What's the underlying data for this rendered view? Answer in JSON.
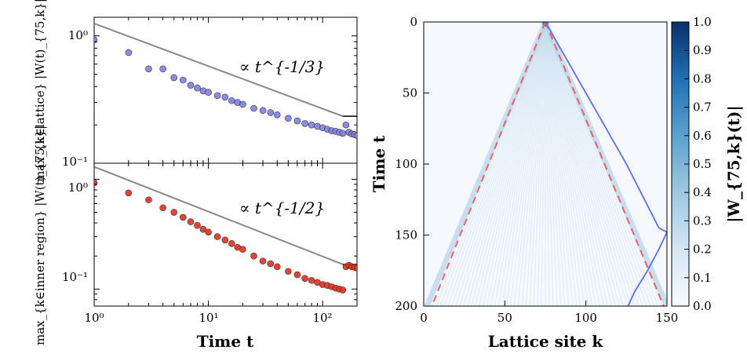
{
  "chart_data": [
    {
      "type": "scatter",
      "panel": "top-left",
      "scale": "log-log",
      "ylabel": "max_{k∈lattice} |W(t)_{75,k}|",
      "xlim": [
        1,
        200
      ],
      "ylim": [
        0.1,
        1.4
      ],
      "yticks": [
        "10⁰",
        "10⁻¹"
      ],
      "annotation": "∝ t^{-1/3}",
      "series": [
        {
          "color": "#8080e0",
          "x": [
            1,
            2,
            3,
            4,
            5,
            6,
            7,
            8,
            9,
            10,
            12,
            14,
            16,
            18,
            20,
            25,
            30,
            35,
            40,
            50,
            60,
            70,
            80,
            90,
            100,
            110,
            120,
            130,
            140,
            150,
            160,
            170,
            180,
            190,
            200
          ],
          "y": [
            0.93,
            0.74,
            0.55,
            0.55,
            0.47,
            0.45,
            0.41,
            0.39,
            0.37,
            0.36,
            0.34,
            0.33,
            0.31,
            0.3,
            0.29,
            0.27,
            0.26,
            0.25,
            0.24,
            0.225,
            0.215,
            0.205,
            0.2,
            0.195,
            0.19,
            0.185,
            0.18,
            0.178,
            0.175,
            0.172,
            0.2,
            0.175,
            0.17,
            0.168,
            0.165
          ]
        }
      ],
      "guide_line": {
        "x": [
          1,
          150
        ],
        "y": [
          1.25,
          0.234
        ],
        "color": "#888888"
      },
      "marker_segment": {
        "x": [
          150,
          200
        ],
        "y": [
          0.234,
          0.234
        ],
        "color": "#000000"
      }
    },
    {
      "type": "scatter",
      "panel": "bottom-left",
      "scale": "log-log",
      "xlabel": "Time t",
      "ylabel": "max_{k∈inner region} |W(t)_{75,k}|",
      "xlim": [
        1,
        200
      ],
      "ylim": [
        0.07,
        1.4
      ],
      "xticks": [
        "10⁰",
        "10¹",
        "10²"
      ],
      "yticks": [
        "10⁰",
        "10⁻¹"
      ],
      "annotation": "∝ t^{-1/2}",
      "series": [
        {
          "color": "#e03020",
          "x": [
            1,
            2,
            3,
            4,
            5,
            6,
            7,
            8,
            9,
            10,
            12,
            14,
            16,
            18,
            20,
            25,
            30,
            35,
            40,
            50,
            60,
            70,
            80,
            90,
            100,
            110,
            120,
            130,
            140,
            150,
            160,
            170,
            180,
            190,
            200
          ],
          "y": [
            0.93,
            0.75,
            0.65,
            0.55,
            0.5,
            0.45,
            0.41,
            0.38,
            0.35,
            0.33,
            0.3,
            0.28,
            0.26,
            0.24,
            0.23,
            0.2,
            0.18,
            0.17,
            0.16,
            0.145,
            0.135,
            0.125,
            0.12,
            0.115,
            0.11,
            0.108,
            0.105,
            0.102,
            0.1,
            0.098,
            0.16,
            0.165,
            0.16,
            0.158,
            0.155
          ]
        }
      ],
      "guide_line": {
        "x": [
          1,
          150
        ],
        "y": [
          1.3,
          0.168
        ],
        "color": "#888888"
      },
      "marker_segment": {
        "x": [
          150,
          200
        ],
        "y": [
          0.168,
          0.168
        ],
        "color": "#000000"
      }
    },
    {
      "type": "heatmap",
      "panel": "right",
      "xlabel": "Lattice site k",
      "ylabel": "Time t",
      "xlim": [
        0,
        150
      ],
      "ylim": [
        200,
        0
      ],
      "xticks": [
        "0",
        "50",
        "100",
        "150"
      ],
      "yticks": [
        "0",
        "50",
        "100",
        "150",
        "200"
      ],
      "colorbar": {
        "label": "|W_{75,k}(t)|",
        "range": [
          0.0,
          1.0
        ],
        "ticks": [
          "0.0",
          "0.1",
          "0.2",
          "0.3",
          "0.4",
          "0.5",
          "0.6",
          "0.7",
          "0.8",
          "0.9",
          "1.0"
        ],
        "colors": [
          "#f7fbff",
          "#08306b"
        ]
      },
      "source_site": 75,
      "light_cone": {
        "color": "#f06060",
        "style": "dashed",
        "left": [
          [
            75,
            0
          ],
          [
            5,
            200
          ]
        ],
        "right": [
          [
            75,
            0
          ],
          [
            148,
            200
          ]
        ]
      },
      "max_path": {
        "color": "#5a6ef0",
        "points": [
          [
            75,
            0
          ],
          [
            100,
            50
          ],
          [
            125,
            100
          ],
          [
            145,
            145
          ],
          [
            150,
            148
          ],
          [
            145,
            160
          ],
          [
            138,
            175
          ],
          [
            130,
            190
          ],
          [
            126,
            200
          ]
        ]
      }
    }
  ]
}
